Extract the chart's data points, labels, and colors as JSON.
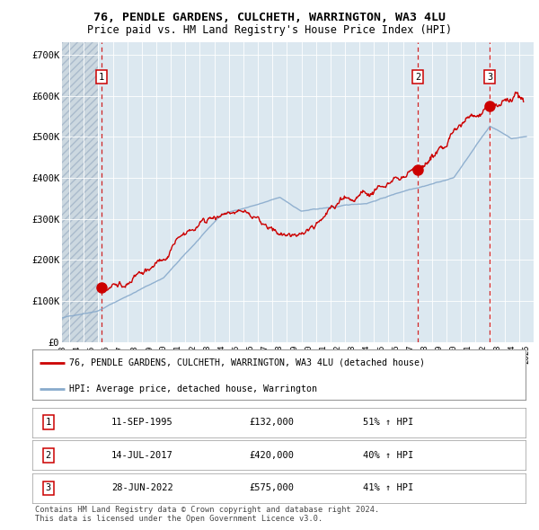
{
  "title1": "76, PENDLE GARDENS, CULCHETH, WARRINGTON, WA3 4LU",
  "title2": "Price paid vs. HM Land Registry's House Price Index (HPI)",
  "xlim_start": 1993.0,
  "xlim_end": 2025.5,
  "ylim": [
    0,
    730000
  ],
  "background_color": "#ffffff",
  "plot_bg_color": "#dce8f0",
  "hatch_bg_color": "#ccd8e0",
  "grid_color": "#ffffff",
  "sale_dates": [
    1995.7,
    2017.54,
    2022.49
  ],
  "sale_prices": [
    132000,
    420000,
    575000
  ],
  "sale_labels": [
    "1",
    "2",
    "3"
  ],
  "legend_label_red": "76, PENDLE GARDENS, CULCHETH, WARRINGTON, WA3 4LU (detached house)",
  "legend_label_blue": "HPI: Average price, detached house, Warrington",
  "table_rows": [
    [
      "1",
      "11-SEP-1995",
      "£132,000",
      "51% ↑ HPI"
    ],
    [
      "2",
      "14-JUL-2017",
      "£420,000",
      "40% ↑ HPI"
    ],
    [
      "3",
      "28-JUN-2022",
      "£575,000",
      "41% ↑ HPI"
    ]
  ],
  "footer": "Contains HM Land Registry data © Crown copyright and database right 2024.\nThis data is licensed under the Open Government Licence v3.0.",
  "red_color": "#cc0000",
  "blue_color": "#88aacc"
}
